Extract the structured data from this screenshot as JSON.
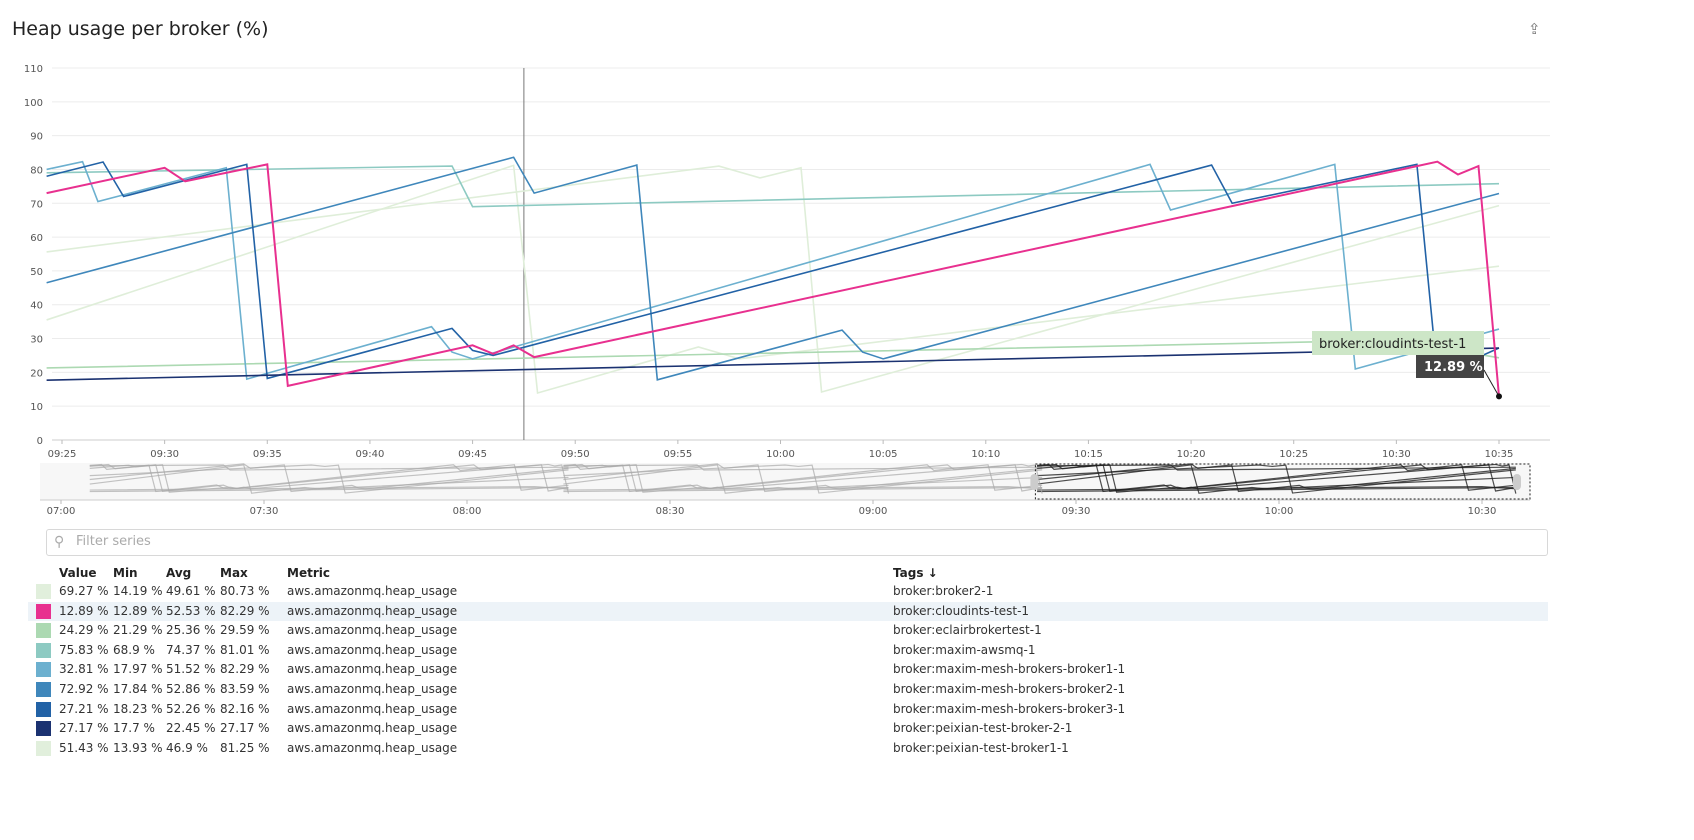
{
  "title": "Heap usage per broker (%)",
  "share_icon": "share-icon",
  "filter": {
    "placeholder": "Filter series",
    "value": ""
  },
  "table": {
    "headers": {
      "value": "Value",
      "min": "Min",
      "avg": "Avg",
      "max": "Max",
      "metric": "Metric",
      "tags": "Tags ↓"
    },
    "rows": [
      {
        "color": "#e1efdc",
        "value": "69.27 %",
        "min": "14.19 %",
        "avg": "49.61 %",
        "max": "80.73 %",
        "metric": "aws.amazonmq.heap_usage",
        "tags": "broker:broker2-1"
      },
      {
        "color": "#e8308f",
        "value": "12.89 %",
        "min": "12.89 %",
        "avg": "52.53 %",
        "max": "82.29 %",
        "metric": "aws.amazonmq.heap_usage",
        "tags": "broker:cloudints-test-1"
      },
      {
        "color": "#acd9b2",
        "value": "24.29 %",
        "min": "21.29 %",
        "avg": "25.36 %",
        "max": "29.59 %",
        "metric": "aws.amazonmq.heap_usage",
        "tags": "broker:eclairbrokertest-1"
      },
      {
        "color": "#8dcac2",
        "value": "75.83 %",
        "min": "68.9 %",
        "avg": "74.37 %",
        "max": "81.01 %",
        "metric": "aws.amazonmq.heap_usage",
        "tags": "broker:maxim-awsmq-1"
      },
      {
        "color": "#6cb0cf",
        "value": "32.81 %",
        "min": "17.97 %",
        "avg": "51.52 %",
        "max": "82.29 %",
        "metric": "aws.amazonmq.heap_usage",
        "tags": "broker:maxim-mesh-brokers-broker1-1"
      },
      {
        "color": "#3f87bb",
        "value": "72.92 %",
        "min": "17.84 %",
        "avg": "52.86 %",
        "max": "83.59 %",
        "metric": "aws.amazonmq.heap_usage",
        "tags": "broker:maxim-mesh-brokers-broker2-1"
      },
      {
        "color": "#2262a6",
        "value": "27.21 %",
        "min": "18.23 %",
        "avg": "52.26 %",
        "max": "82.16 %",
        "metric": "aws.amazonmq.heap_usage",
        "tags": "broker:maxim-mesh-brokers-broker3-1"
      },
      {
        "color": "#1b3271",
        "value": "27.17 %",
        "min": "17.7 %",
        "avg": "22.45 %",
        "max": "27.17 %",
        "metric": "aws.amazonmq.heap_usage",
        "tags": "broker:peixian-test-broker-2-1"
      },
      {
        "color": "#e1efdc",
        "value": "51.43 %",
        "min": "13.93 %",
        "avg": "46.9 %",
        "max": "81.25 %",
        "metric": "aws.amazonmq.heap_usage",
        "tags": "broker:peixian-test-broker1-1"
      }
    ],
    "highlighted_row": 1
  },
  "chart_data": {
    "type": "line",
    "title": "Heap usage per broker (%)",
    "ylim": [
      0,
      110
    ],
    "yticks": [
      "0",
      "10",
      "20",
      "30",
      "40",
      "50",
      "60",
      "70",
      "80",
      "90",
      "100",
      "110"
    ],
    "xticks": [
      "09:25",
      "09:30",
      "09:35",
      "09:40",
      "09:45",
      "09:50",
      "09:55",
      "10:00",
      "10:05",
      "10:10",
      "10:15",
      "10:20",
      "10:25",
      "10:30",
      "10:35"
    ],
    "xlim": [
      "09:24:15",
      "10:37:30"
    ],
    "grid": true,
    "cursor_time": "09:47:30",
    "tooltip": {
      "series": "broker:cloudints-test-1",
      "value": "12.89 %",
      "time": "10:35"
    },
    "navigator": {
      "ticks": [
        "07:00",
        "07:30",
        "08:00",
        "08:30",
        "09:00",
        "09:30",
        "10:00",
        "10:30"
      ],
      "range": [
        "07:00",
        "10:35"
      ],
      "selection": [
        "09:24",
        "10:35"
      ]
    },
    "series": [
      {
        "name": "broker:broker2-1",
        "color": "#dfeed9",
        "points": [
          [
            "09:24:15",
            55.6
          ],
          [
            "09:57:00",
            81
          ],
          [
            "09:59:00",
            77.5
          ],
          [
            "10:01:00",
            80.5
          ],
          [
            "10:02:00",
            14.2
          ],
          [
            "10:35:00",
            69.3
          ]
        ]
      },
      {
        "name": "broker:peixian-test-broker1-1",
        "color": "#dfeed9",
        "points": [
          [
            "09:24:15",
            35.5
          ],
          [
            "09:47:00",
            81.2
          ],
          [
            "09:48:10",
            13.9
          ],
          [
            "09:56:00",
            27.5
          ],
          [
            "09:58:00",
            24
          ],
          [
            "10:35:00",
            51.4
          ]
        ]
      },
      {
        "name": "broker:eclairbrokertest-1",
        "color": "#acd9b2",
        "points": [
          [
            "09:24:15",
            21.3
          ],
          [
            "10:30:00",
            29.5
          ],
          [
            "10:35:00",
            24.3
          ]
        ]
      },
      {
        "name": "broker:maxim-awsmq-1",
        "color": "#8dcac2",
        "points": [
          [
            "09:24:15",
            79
          ],
          [
            "09:44:00",
            81
          ],
          [
            "09:45:00",
            69
          ],
          [
            "10:35:00",
            75.8
          ]
        ]
      },
      {
        "name": "broker:maxim-mesh-brokers-broker1-1",
        "color": "#6cb0cf",
        "points": [
          [
            "09:24:15",
            80
          ],
          [
            "09:26:00",
            82.3
          ],
          [
            "09:26:45",
            70.5
          ],
          [
            "09:33:00",
            80.5
          ],
          [
            "09:34:00",
            18
          ],
          [
            "09:43:00",
            33.5
          ],
          [
            "09:44:00",
            26
          ],
          [
            "09:45:00",
            24
          ],
          [
            "10:18:00",
            81.5
          ],
          [
            "10:19:00",
            68
          ],
          [
            "10:27:00",
            81.5
          ],
          [
            "10:28:00",
            21
          ],
          [
            "10:35:00",
            32.8
          ]
        ]
      },
      {
        "name": "broker:maxim-mesh-brokers-broker2-1",
        "color": "#3f87bb",
        "points": [
          [
            "09:24:15",
            46.5
          ],
          [
            "09:47:00",
            83.6
          ],
          [
            "09:48:00",
            73
          ],
          [
            "09:53:00",
            81.3
          ],
          [
            "09:54:00",
            17.8
          ],
          [
            "10:03:00",
            32.5
          ],
          [
            "10:04:00",
            26
          ],
          [
            "10:05:00",
            24
          ],
          [
            "10:35:00",
            72.9
          ]
        ]
      },
      {
        "name": "broker:maxim-mesh-brokers-broker3-1",
        "color": "#2262a6",
        "points": [
          [
            "09:24:15",
            78
          ],
          [
            "09:27:00",
            82.2
          ],
          [
            "09:28:00",
            72
          ],
          [
            "09:34:00",
            81.5
          ],
          [
            "09:35:00",
            18.2
          ],
          [
            "09:44:00",
            33
          ],
          [
            "09:45:00",
            26.5
          ],
          [
            "09:46:00",
            25
          ],
          [
            "10:21:00",
            81.3
          ],
          [
            "10:22:00",
            70
          ],
          [
            "10:31:00",
            81.5
          ],
          [
            "10:32:00",
            19
          ],
          [
            "10:35:00",
            27.2
          ]
        ]
      },
      {
        "name": "broker:peixian-test-broker-2-1",
        "color": "#1b3271",
        "points": [
          [
            "09:24:15",
            17.7
          ],
          [
            "10:35:00",
            27.2
          ]
        ]
      },
      {
        "name": "broker:cloudints-test-1",
        "color": "#e8308f",
        "points": [
          [
            "09:24:15",
            73
          ],
          [
            "09:30:00",
            80.5
          ],
          [
            "09:31:00",
            76.5
          ],
          [
            "09:35:00",
            81.5
          ],
          [
            "09:36:00",
            16
          ],
          [
            "09:45:00",
            28
          ],
          [
            "09:46:00",
            25.5
          ],
          [
            "09:47:00",
            28
          ],
          [
            "09:48:00",
            24.5
          ],
          [
            "10:32:00",
            82.3
          ],
          [
            "10:33:00",
            78.5
          ],
          [
            "10:34:00",
            81
          ],
          [
            "10:35:00",
            12.9
          ]
        ]
      }
    ]
  }
}
